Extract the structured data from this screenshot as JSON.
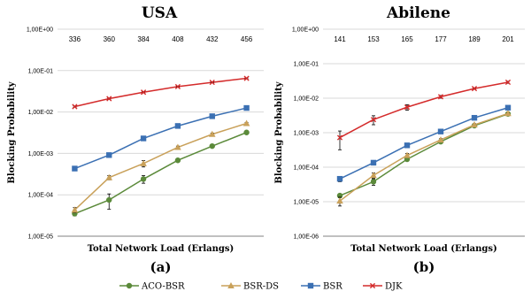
{
  "series_styles": [
    {
      "name": "ACO-BSR",
      "color": "#5b8a3a",
      "marker": "circle"
    },
    {
      "name": "BSR-DS",
      "color": "#c9a15a",
      "marker": "triangle"
    },
    {
      "name": "BSR",
      "color": "#3b70b3",
      "marker": "square"
    },
    {
      "name": "DJK",
      "color": "#d42b2b",
      "marker": "x"
    }
  ],
  "chart_data": [
    {
      "type": "line",
      "title": "USA",
      "panel_label": "(a)",
      "xlabel": "Total Network Load (Erlangs)",
      "ylabel": "Blocking Probability",
      "x": [
        336,
        360,
        384,
        408,
        432,
        456
      ],
      "x_tick_labels": [
        "336",
        "360",
        "384",
        "408",
        "432",
        "456"
      ],
      "x_ticks_position": "top",
      "yscale": "log",
      "ylim": [
        1e-05,
        1
      ],
      "y_tick_labels": [
        "1,00E-05",
        "1,00E-04",
        "1,00E-03",
        "1,00E-02",
        "1,00E-01",
        "1,00E+00"
      ],
      "grid": "horizontal",
      "series": [
        {
          "name": "ACO-BSR",
          "values": [
            3.5e-05,
            7.5e-05,
            0.00024,
            0.00068,
            0.0015,
            0.0032
          ],
          "error": [
            4e-06,
            3e-05,
            5e-05,
            5e-05,
            0.0001,
            0.0002
          ]
        },
        {
          "name": "BSR-DS",
          "values": [
            4.3e-05,
            0.00026,
            0.00057,
            0.0014,
            0.0029,
            0.0053
          ],
          "error": [
            6e-06,
            3e-05,
            0.0001,
            0.0001,
            0.0002,
            0.0003
          ]
        },
        {
          "name": "BSR",
          "values": [
            0.00043,
            0.00091,
            0.0023,
            0.0046,
            0.0079,
            0.0125
          ],
          "error": [
            2e-05,
            5e-05,
            0.0001,
            0.0002,
            0.0003,
            0.0005
          ]
        },
        {
          "name": "DJK",
          "values": [
            0.0135,
            0.021,
            0.03,
            0.041,
            0.052,
            0.065
          ],
          "error": [
            0.0005,
            0.0008,
            0.001,
            0.001,
            0.001,
            0.002
          ]
        }
      ]
    },
    {
      "type": "line",
      "title": "Abilene",
      "panel_label": "(b)",
      "xlabel": "Total Network Load (Erlangs)",
      "ylabel": "Blocking Probability",
      "x": [
        141,
        153,
        165,
        177,
        189,
        201
      ],
      "x_tick_labels": [
        "141",
        "153",
        "165",
        "177",
        "189",
        "201"
      ],
      "x_ticks_position": "top",
      "yscale": "log",
      "ylim": [
        1e-06,
        1
      ],
      "y_tick_labels": [
        "1,00E-06",
        "1,00E-05",
        "1,00E-04",
        "1,00E-03",
        "1,00E-02",
        "1,00E-01",
        "1,00E+00"
      ],
      "grid": "horizontal",
      "series": [
        {
          "name": "ACO-BSR",
          "values": [
            1.5e-05,
            3.8e-05,
            0.00017,
            0.00055,
            0.0016,
            0.0035
          ],
          "error": [
            2e-06,
            8e-06,
            2e-05,
            5e-05,
            0.0001,
            0.0002
          ]
        },
        {
          "name": "BSR-DS",
          "values": [
            1.05e-05,
            5.8e-05,
            0.00022,
            0.00062,
            0.0017,
            0.0036
          ],
          "error": [
            3e-06,
            1e-05,
            3e-05,
            5e-05,
            0.0001,
            0.0002
          ]
        },
        {
          "name": "BSR",
          "values": [
            4.6e-05,
            0.000135,
            0.00043,
            0.00108,
            0.0027,
            0.0053
          ],
          "error": [
            8e-06,
            2e-05,
            3e-05,
            8e-05,
            0.0002,
            0.0003
          ]
        },
        {
          "name": "DJK",
          "values": [
            0.00072,
            0.0024,
            0.0055,
            0.011,
            0.019,
            0.029
          ],
          "error": [
            0.0004,
            0.0007,
            0.001,
            0.001,
            0.001,
            0.002
          ]
        }
      ]
    }
  ]
}
